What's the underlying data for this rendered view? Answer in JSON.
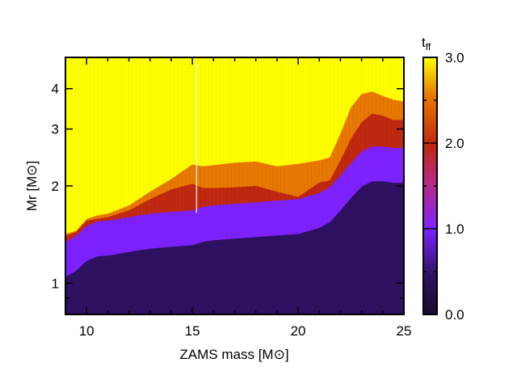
{
  "chart_data": {
    "type": "heatmap",
    "xlabel": "ZAMS mass [M⊙]",
    "ylabel": "Mr [M⊙]",
    "x_ticks": [
      "10",
      "15",
      "20",
      "25"
    ],
    "x_tick_values": [
      10,
      15,
      20,
      25
    ],
    "y_ticks": [
      "1",
      "2",
      "3",
      "4"
    ],
    "y_tick_values": [
      1,
      2,
      3,
      4
    ],
    "xlim": [
      9,
      25
    ],
    "ylim": [
      0.8,
      5.0
    ],
    "y_scale": "log",
    "colorbar": {
      "label_main": "t",
      "label_sub": "ff",
      "ticks": [
        "0.0",
        "1.0",
        "2.0",
        "3.0"
      ],
      "tick_values": [
        0,
        1,
        2,
        3
      ],
      "range": [
        0,
        3
      ],
      "colors": [
        "#1a0b2e",
        "#2e1160",
        "#7d22ff",
        "#c02810",
        "#e87800",
        "#ffff00"
      ]
    },
    "boundaries": {
      "note_units": "x in ZAMS mass [Msun], y in Mr [Msun]",
      "tff_1p0": [
        [
          9.0,
          1.34
        ],
        [
          9.5,
          1.4
        ],
        [
          10,
          1.5
        ],
        [
          10.5,
          1.55
        ],
        [
          11,
          1.56
        ],
        [
          12,
          1.6
        ],
        [
          13,
          1.64
        ],
        [
          14,
          1.66
        ],
        [
          15,
          1.68
        ],
        [
          15.5,
          1.72
        ],
        [
          16,
          1.74
        ],
        [
          17,
          1.76
        ],
        [
          18,
          1.78
        ],
        [
          19,
          1.8
        ],
        [
          20,
          1.82
        ],
        [
          21,
          1.9
        ],
        [
          21.5,
          1.98
        ],
        [
          22,
          2.15
        ],
        [
          22.5,
          2.35
        ],
        [
          23,
          2.55
        ],
        [
          23.5,
          2.65
        ],
        [
          24,
          2.65
        ],
        [
          24.5,
          2.62
        ],
        [
          25,
          2.62
        ]
      ],
      "tff_2p0": [
        [
          9.0,
          1.4
        ],
        [
          9.5,
          1.44
        ],
        [
          10,
          1.56
        ],
        [
          10.5,
          1.58
        ],
        [
          11,
          1.6
        ],
        [
          12,
          1.68
        ],
        [
          13,
          1.82
        ],
        [
          14,
          1.95
        ],
        [
          15,
          2.03
        ],
        [
          15.5,
          1.97
        ],
        [
          16,
          1.97
        ],
        [
          17,
          1.98
        ],
        [
          18,
          2.0
        ],
        [
          19,
          1.92
        ],
        [
          20,
          1.85
        ],
        [
          21,
          2.05
        ],
        [
          21.5,
          2.08
        ],
        [
          22,
          2.4
        ],
        [
          22.5,
          2.8
        ],
        [
          23,
          3.15
        ],
        [
          23.5,
          3.35
        ],
        [
          24,
          3.3
        ],
        [
          24.5,
          3.2
        ],
        [
          25,
          3.2
        ]
      ],
      "tff_3p0": [
        [
          9.0,
          1.42
        ],
        [
          9.5,
          1.45
        ],
        [
          10,
          1.58
        ],
        [
          10.5,
          1.62
        ],
        [
          11,
          1.64
        ],
        [
          12,
          1.74
        ],
        [
          13,
          1.92
        ],
        [
          14,
          2.1
        ],
        [
          15,
          2.33
        ],
        [
          15.5,
          2.3
        ],
        [
          16,
          2.32
        ],
        [
          17,
          2.36
        ],
        [
          18,
          2.38
        ],
        [
          19,
          2.3
        ],
        [
          20,
          2.34
        ],
        [
          21,
          2.4
        ],
        [
          21.5,
          2.45
        ],
        [
          22,
          2.9
        ],
        [
          22.5,
          3.5
        ],
        [
          23,
          3.85
        ],
        [
          23.5,
          3.92
        ],
        [
          24,
          3.8
        ],
        [
          24.5,
          3.7
        ],
        [
          25,
          3.65
        ]
      ]
    }
  }
}
